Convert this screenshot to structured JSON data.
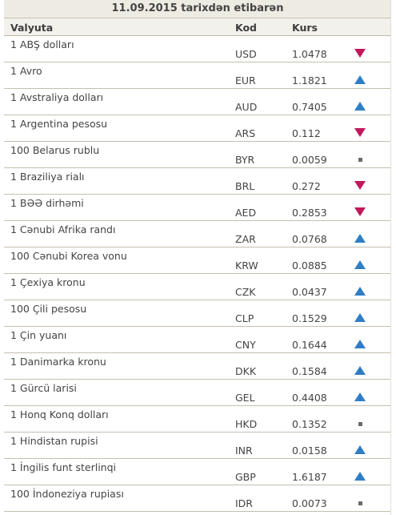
{
  "title": "11.09.2015 tarixdən etibarən",
  "headers": {
    "currency": "Valyuta",
    "code": "Kod",
    "rate": "Kurs"
  },
  "colors": {
    "up": "#2f7ec4",
    "down": "#c2185b",
    "same": "#6b6b6b"
  },
  "rows": [
    {
      "name": "1 ABŞ dolları",
      "code": "USD",
      "rate": "1.0478",
      "trend": "down"
    },
    {
      "name": "1 Avro",
      "code": "EUR",
      "rate": "1.1821",
      "trend": "up"
    },
    {
      "name": "1 Avstraliya dolları",
      "code": "AUD",
      "rate": "0.7405",
      "trend": "up"
    },
    {
      "name": "1 Argentina pesosu",
      "code": "ARS",
      "rate": "0.112",
      "trend": "down"
    },
    {
      "name": "100 Belarus rublu",
      "code": "BYR",
      "rate": "0.0059",
      "trend": "same"
    },
    {
      "name": "1 Braziliya rialı",
      "code": "BRL",
      "rate": "0.272",
      "trend": "down"
    },
    {
      "name": "1 BƏƏ dirhəmi",
      "code": "AED",
      "rate": "0.2853",
      "trend": "down"
    },
    {
      "name": "1 Cənubi Afrika randı",
      "code": "ZAR",
      "rate": "0.0768",
      "trend": "up"
    },
    {
      "name": "100 Cənubi Korea vonu",
      "code": "KRW",
      "rate": "0.0885",
      "trend": "up"
    },
    {
      "name": "1 Çexiya kronu",
      "code": "CZK",
      "rate": "0.0437",
      "trend": "up"
    },
    {
      "name": "100 Çili pesosu",
      "code": "CLP",
      "rate": "0.1529",
      "trend": "up"
    },
    {
      "name": "1 Çin yuanı",
      "code": "CNY",
      "rate": "0.1644",
      "trend": "up"
    },
    {
      "name": "1 Danimarka kronu",
      "code": "DKK",
      "rate": "0.1584",
      "trend": "up"
    },
    {
      "name": "1 Gürcü larisi",
      "code": "GEL",
      "rate": "0.4408",
      "trend": "up"
    },
    {
      "name": "1 Honq Konq dolları",
      "code": "HKD",
      "rate": "0.1352",
      "trend": "same"
    },
    {
      "name": "1 Hindistan rupisi",
      "code": "INR",
      "rate": "0.0158",
      "trend": "up"
    },
    {
      "name": "1 İngilis funt sterlinqi",
      "code": "GBP",
      "rate": "1.6187",
      "trend": "up"
    },
    {
      "name": "100 İndoneziya rupiası",
      "code": "IDR",
      "rate": "0.0073",
      "trend": "same"
    }
  ]
}
